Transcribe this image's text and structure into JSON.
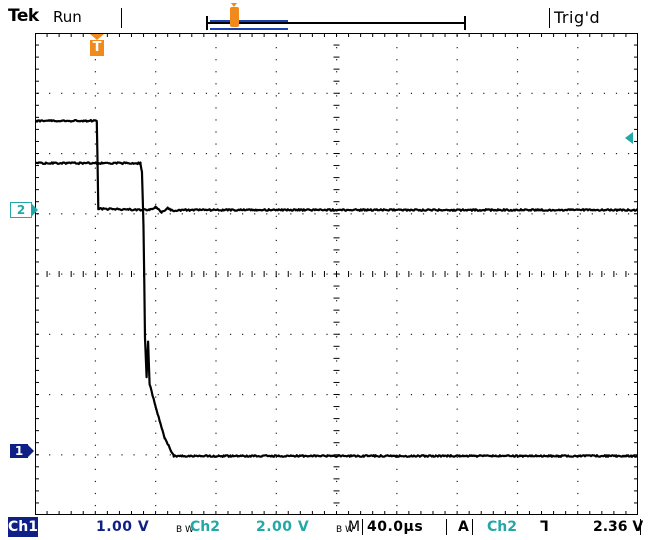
{
  "header": {
    "brand": "Tek",
    "run_state": "Run",
    "trigger_state": "Trig'd"
  },
  "markers": {
    "trigger_position": "T",
    "ch1": "1",
    "ch2": "2"
  },
  "status": {
    "ch1_label": "Ch1",
    "ch1_scale": "1.00 V",
    "bw_limit": "B W",
    "ch2_label": "Ch2",
    "ch2_scale": "2.00 V",
    "timebase_label": "M",
    "timebase_value": "40.0µs",
    "trigger_mode": "A",
    "trigger_source": "Ch2",
    "trigger_slope": "falling",
    "trigger_level": "2.36 V"
  },
  "colors": {
    "ch1": "#0e1f86",
    "ch2": "#23a7a7",
    "trigger": "#f08a1c",
    "grid": "#000000"
  },
  "chart_data": {
    "type": "line",
    "x_unit": "µs",
    "xlim": [
      -40,
      360
    ],
    "x_divisions": 10,
    "y_divisions": 8,
    "series": [
      {
        "name": "Ch2",
        "scale_v_per_div": 2.0,
        "points": [
          [
            -40,
            2.96
          ],
          [
            1,
            2.96
          ],
          [
            2,
            0.04
          ],
          [
            36,
            0.0
          ],
          [
            40,
            0.1
          ],
          [
            44,
            -0.08
          ],
          [
            48,
            0.06
          ],
          [
            52,
            -0.04
          ],
          [
            56,
            0.0
          ],
          [
            360,
            0.0
          ]
        ]
      },
      {
        "name": "Ch1",
        "scale_v_per_div": 1.0,
        "points": [
          [
            -40,
            4.86
          ],
          [
            30,
            4.86
          ],
          [
            31,
            4.7
          ],
          [
            32,
            3.8
          ],
          [
            33,
            1.96
          ],
          [
            34,
            1.3
          ],
          [
            35,
            1.9
          ],
          [
            36,
            1.2
          ],
          [
            40,
            0.82
          ],
          [
            46,
            0.3
          ],
          [
            52,
            0.0
          ],
          [
            360,
            0.0
          ]
        ]
      }
    ]
  }
}
